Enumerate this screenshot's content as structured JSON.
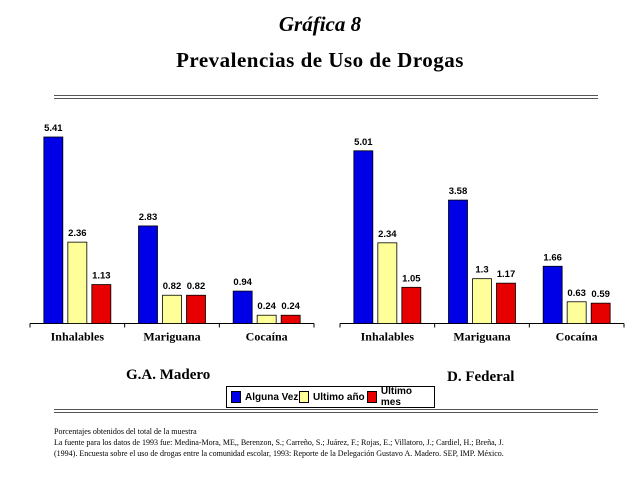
{
  "supertitle": "Gráfica 8",
  "title": "Prevalencias de Uso de Drogas",
  "colors": {
    "alguna_vez": "#0000e6",
    "ultimo_ano": "#ffff99",
    "ultimo_mes": "#e60000"
  },
  "legend": {
    "alguna_vez": "Alguna Vez",
    "ultimo_ano": "Ultimo año",
    "ultimo_mes": "Ultimo mes"
  },
  "chart_data": [
    {
      "type": "bar",
      "title": "G.A. Madero",
      "categories": [
        "Inhalables",
        "Mariguana",
        "Cocaína"
      ],
      "series": [
        {
          "name": "Alguna Vez",
          "values": [
            5.41,
            2.83,
            0.94
          ]
        },
        {
          "name": "Ultimo año",
          "values": [
            2.36,
            0.82,
            0.24
          ]
        },
        {
          "name": "Ultimo mes",
          "values": [
            1.13,
            0.82,
            0.24
          ]
        }
      ],
      "value_labels": [
        [
          "5.41",
          "2.83",
          "0.94"
        ],
        [
          "2.36",
          "0.82",
          "0.24"
        ],
        [
          "1.13",
          "0.82",
          "0.24"
        ]
      ],
      "ylim": [
        0,
        5.41
      ],
      "grid": false
    },
    {
      "type": "bar",
      "title": "D. Federal",
      "categories": [
        "Inhalables",
        "Mariguana",
        "Cocaína"
      ],
      "series": [
        {
          "name": "Alguna Vez",
          "values": [
            5.01,
            3.58,
            1.66
          ]
        },
        {
          "name": "Ultimo año",
          "values": [
            2.34,
            1.3,
            0.63
          ]
        },
        {
          "name": "Ultimo mes",
          "values": [
            1.05,
            1.17,
            0.59
          ]
        }
      ],
      "value_labels": [
        [
          "5.01",
          "3.58",
          "1.66"
        ],
        [
          "2.34",
          "1.3",
          "0.63"
        ],
        [
          "1.05",
          "1.17",
          "0.59"
        ]
      ],
      "ylim": [
        0,
        5.41
      ],
      "grid": false
    }
  ],
  "footnote": {
    "line1": "Porcentajes obtenidos del total de la muestra",
    "line2": "La fuente para los datos de 1993 fue: Medina-Mora, ME,, Berenzon, S.; Carreño, S.; Juárez, F.; Rojas, E.; Villatoro, J.; Cardiel, H.; Breña, J.",
    "line3": "(1994). Encuesta sobre el uso de drogas entre la comunidad escolar, 1993: Reporte de la Delegación Gustavo A. Madero. SEP, IMP. México."
  }
}
